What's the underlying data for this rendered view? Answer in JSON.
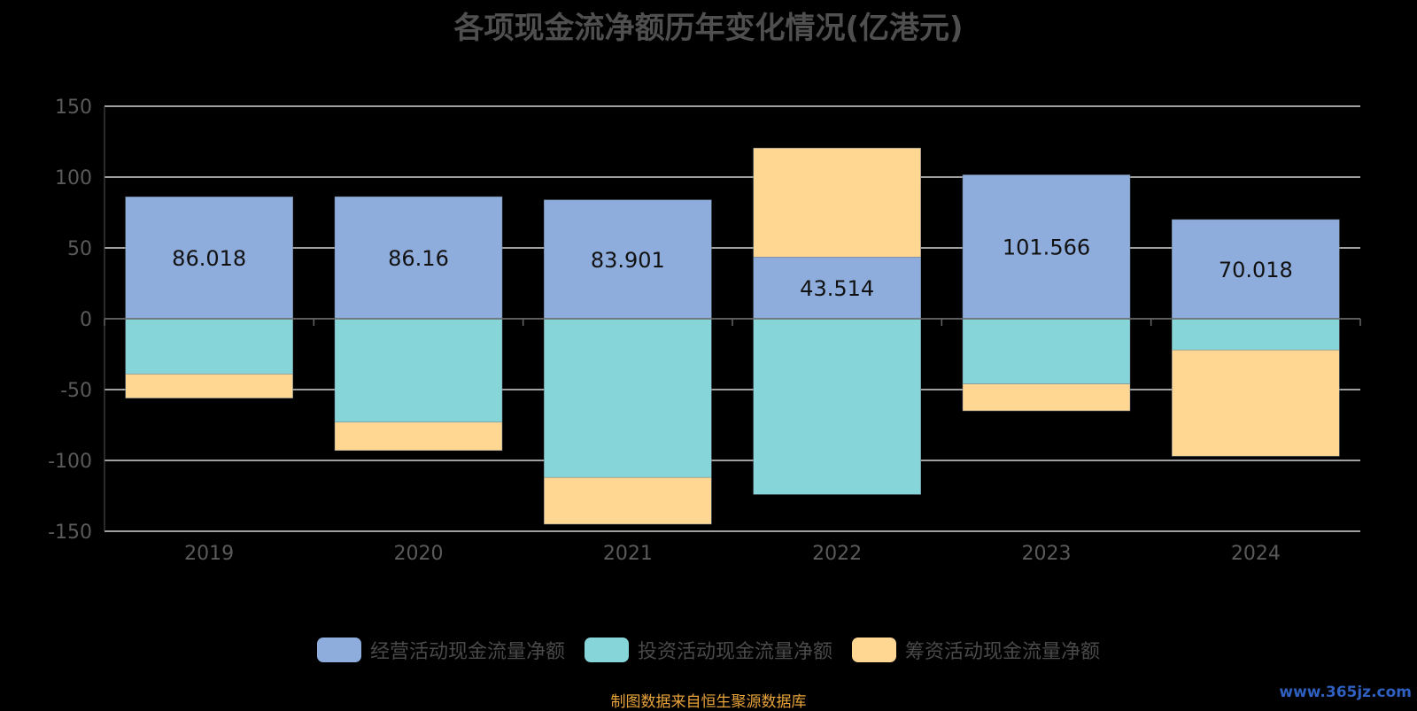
{
  "chart_data": {
    "type": "bar",
    "stacked": true,
    "title": "各项现金流净额历年变化情况(亿港元)",
    "categories": [
      "2019",
      "2020",
      "2021",
      "2022",
      "2023",
      "2024"
    ],
    "series": [
      {
        "name": "经营活动现金流量净额",
        "color": "#8eaddc",
        "values": [
          86.018,
          86.16,
          83.901,
          43.514,
          101.566,
          70.018
        ]
      },
      {
        "name": "投资活动现金流量净额",
        "color": "#86d6d9",
        "values": [
          -39,
          -73,
          -112,
          -124,
          -46,
          -22
        ]
      },
      {
        "name": "筹资活动现金流量净额",
        "color": "#ffd792",
        "values": [
          -17,
          -20,
          -33,
          77,
          -19,
          -75
        ]
      }
    ],
    "data_labels": [
      "86.018",
      "86.16",
      "83.901",
      "43.514",
      "101.566",
      "70.018"
    ],
    "ylim": [
      -150,
      150
    ],
    "yticks": [
      150,
      100,
      50,
      0,
      -50,
      -100,
      -150
    ],
    "grid": true,
    "legend_position": "bottom"
  },
  "source": "制图数据来自恒生聚源数据库",
  "watermark": "www.365jz.com"
}
